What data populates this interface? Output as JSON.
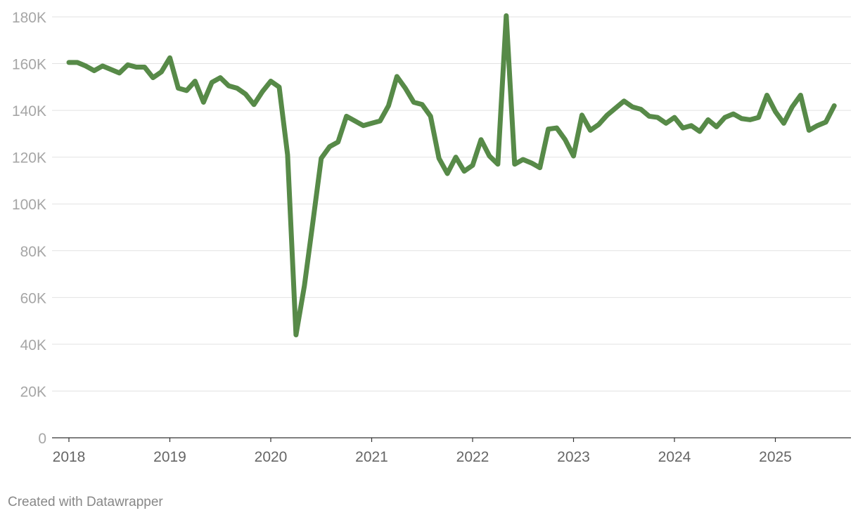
{
  "credit": "Created with Datawrapper",
  "colors": {
    "line": "#578a48",
    "grid": "#e2e2e2",
    "baseline": "#333333",
    "y_tick_text": "#a6a6a6",
    "x_tick_text": "#666666",
    "credit_text": "#888888"
  },
  "chart_data": {
    "type": "line",
    "title": "",
    "xlabel": "",
    "ylabel": "",
    "legend": "none",
    "grid": true,
    "xlim": [
      "2018-01",
      "2025-09"
    ],
    "ylim": [
      0,
      180000
    ],
    "y_ticks": [
      {
        "value": 0,
        "label": "0"
      },
      {
        "value": 20000,
        "label": "20K"
      },
      {
        "value": 40000,
        "label": "40K"
      },
      {
        "value": 60000,
        "label": "60K"
      },
      {
        "value": 80000,
        "label": "80K"
      },
      {
        "value": 100000,
        "label": "100K"
      },
      {
        "value": 120000,
        "label": "120K"
      },
      {
        "value": 140000,
        "label": "140K"
      },
      {
        "value": 160000,
        "label": "160K"
      },
      {
        "value": 180000,
        "label": "180K"
      }
    ],
    "x_ticks": [
      {
        "value": "2018-01",
        "label": "2018"
      },
      {
        "value": "2019-01",
        "label": "2019"
      },
      {
        "value": "2020-01",
        "label": "2020"
      },
      {
        "value": "2021-01",
        "label": "2021"
      },
      {
        "value": "2022-01",
        "label": "2022"
      },
      {
        "value": "2023-01",
        "label": "2023"
      },
      {
        "value": "2024-01",
        "label": "2024"
      },
      {
        "value": "2025-01",
        "label": "2025"
      }
    ],
    "series": [
      {
        "x": [
          "2018-01",
          "2018-02",
          "2018-03",
          "2018-04",
          "2018-05",
          "2018-06",
          "2018-07",
          "2018-08",
          "2018-09",
          "2018-10",
          "2018-11",
          "2018-12",
          "2019-01",
          "2019-02",
          "2019-03",
          "2019-04",
          "2019-05",
          "2019-06",
          "2019-07",
          "2019-08",
          "2019-09",
          "2019-10",
          "2019-11",
          "2019-12",
          "2020-01",
          "2020-02",
          "2020-03",
          "2020-04",
          "2020-05",
          "2020-06",
          "2020-07",
          "2020-08",
          "2020-09",
          "2020-10",
          "2020-11",
          "2020-12",
          "2021-01",
          "2021-02",
          "2021-03",
          "2021-04",
          "2021-05",
          "2021-06",
          "2021-07",
          "2021-08",
          "2021-09",
          "2021-10",
          "2021-11",
          "2021-12",
          "2022-01",
          "2022-02",
          "2022-03",
          "2022-04",
          "2022-05",
          "2022-06",
          "2022-07",
          "2022-08",
          "2022-09",
          "2022-10",
          "2022-11",
          "2022-12",
          "2023-01",
          "2023-02",
          "2023-03",
          "2023-04",
          "2023-05",
          "2023-06",
          "2023-07",
          "2023-08",
          "2023-09",
          "2023-10",
          "2023-11",
          "2023-12",
          "2024-01",
          "2024-02",
          "2024-03",
          "2024-04",
          "2024-05",
          "2024-06",
          "2024-07",
          "2024-08",
          "2024-09",
          "2024-10",
          "2024-11",
          "2024-12",
          "2025-01",
          "2025-02",
          "2025-03",
          "2025-04",
          "2025-05",
          "2025-06",
          "2025-07",
          "2025-08"
        ],
        "values": [
          160500,
          160500,
          159000,
          157000,
          159000,
          157500,
          156000,
          159500,
          158500,
          158500,
          154000,
          156500,
          162500,
          149500,
          148500,
          152500,
          143500,
          152000,
          154000,
          150500,
          149500,
          147000,
          142500,
          148000,
          152500,
          150000,
          121000,
          44000,
          65000,
          92000,
          119500,
          124500,
          126500,
          137500,
          135500,
          133500,
          134500,
          135500,
          142000,
          154500,
          149500,
          143500,
          142500,
          137500,
          119500,
          113000,
          120000,
          114000,
          116500,
          127500,
          120500,
          117000,
          180500,
          117000,
          119000,
          117500,
          115500,
          132000,
          132500,
          127500,
          120500,
          138000,
          131500,
          134000,
          138000,
          141000,
          144000,
          141500,
          140500,
          137500,
          137000,
          134500,
          137000,
          132500,
          133500,
          131000,
          136000,
          133000,
          137000,
          138500,
          136500,
          136000,
          137000,
          146500,
          139500,
          134500,
          141500,
          146500,
          131500,
          133500,
          135000,
          142000
        ]
      }
    ]
  }
}
